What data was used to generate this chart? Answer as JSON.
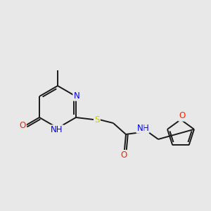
{
  "background_color": "#e8e8e8",
  "bond_color": "#1a1a1a",
  "atom_colors": {
    "N": "#0000ff",
    "O": "#ff2200",
    "S": "#cccc00",
    "C": "#1a1a1a",
    "H": "#1a1a1a"
  },
  "font_size": 8.5,
  "lw": 1.4,
  "figsize": [
    3.0,
    3.0
  ],
  "dpi": 100,
  "xlim": [
    0,
    300
  ],
  "ylim": [
    0,
    300
  ]
}
